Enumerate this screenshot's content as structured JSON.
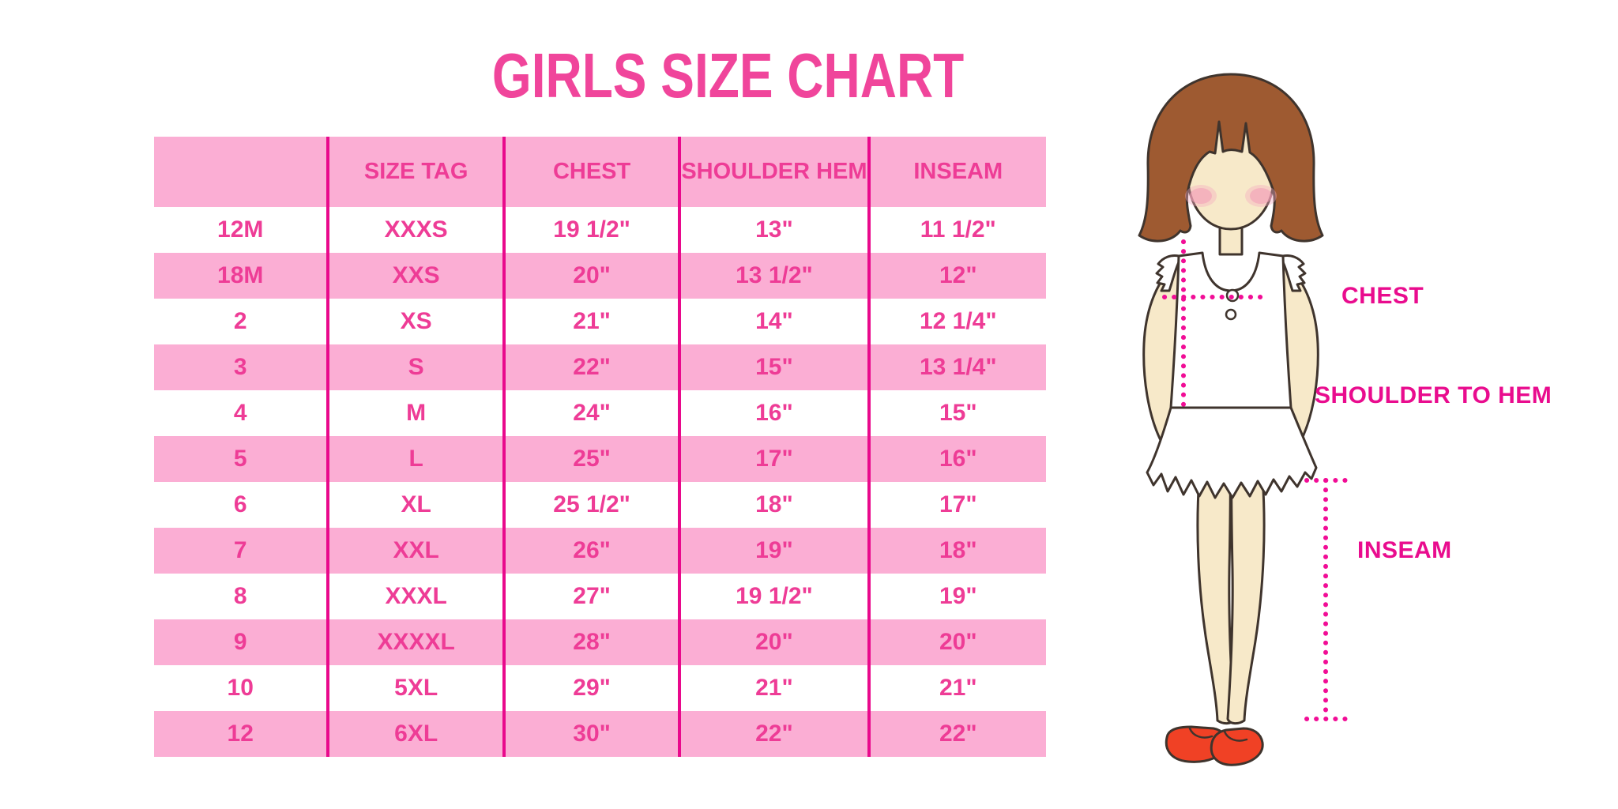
{
  "title": "GIRLS SIZE CHART",
  "chart_data": {
    "type": "table",
    "title": "GIRLS SIZE CHART",
    "columns": [
      "",
      "SIZE TAG",
      "CHEST",
      "SHOULDER HEM",
      "INSEAM"
    ],
    "rows": [
      [
        "12M",
        "XXXS",
        "19 1/2\"",
        "13\"",
        "11 1/2\""
      ],
      [
        "18M",
        "XXS",
        "20\"",
        "13 1/2\"",
        "12\""
      ],
      [
        "2",
        "XS",
        "21\"",
        "14\"",
        "12 1/4\""
      ],
      [
        "3",
        "S",
        "22\"",
        "15\"",
        "13 1/4\""
      ],
      [
        "4",
        "M",
        "24\"",
        "16\"",
        "15\""
      ],
      [
        "5",
        "L",
        "25\"",
        "17\"",
        "16\""
      ],
      [
        "6",
        "XL",
        "25 1/2\"",
        "18\"",
        "17\""
      ],
      [
        "7",
        "XXL",
        "26\"",
        "19\"",
        "18\""
      ],
      [
        "8",
        "XXXL",
        "27\"",
        "19 1/2\"",
        "19\""
      ],
      [
        "9",
        "XXXXL",
        "28\"",
        "20\"",
        "20\""
      ],
      [
        "10",
        "5XL",
        "29\"",
        "21\"",
        "21\""
      ],
      [
        "12",
        "6XL",
        "30\"",
        "22\"",
        "22\""
      ]
    ],
    "row_style": "alternating white and pink bands, magenta column dividers",
    "legend_position": "none",
    "grid": "vertical dividers only"
  },
  "figure_labels": {
    "chest": "CHEST",
    "shoulder_to_hem": "SHOULDER TO HEM",
    "inseam": "INSEAM"
  },
  "colors": {
    "title_pink": "#F0459B",
    "row_pink": "#FBAED4",
    "divider_magenta": "#E9098C",
    "cell_text_pink": "#EE3C96",
    "label_magenta": "#E90C8E",
    "dotted_line_pink": "#F10D96",
    "hair_brown": "#9E5A31",
    "skin_tone": "#F7E9C9",
    "blush_pink": "#F5A9C0",
    "shoe_red": "#F04125",
    "outline_dark": "#3F342D",
    "background": "#FFFFFF"
  }
}
